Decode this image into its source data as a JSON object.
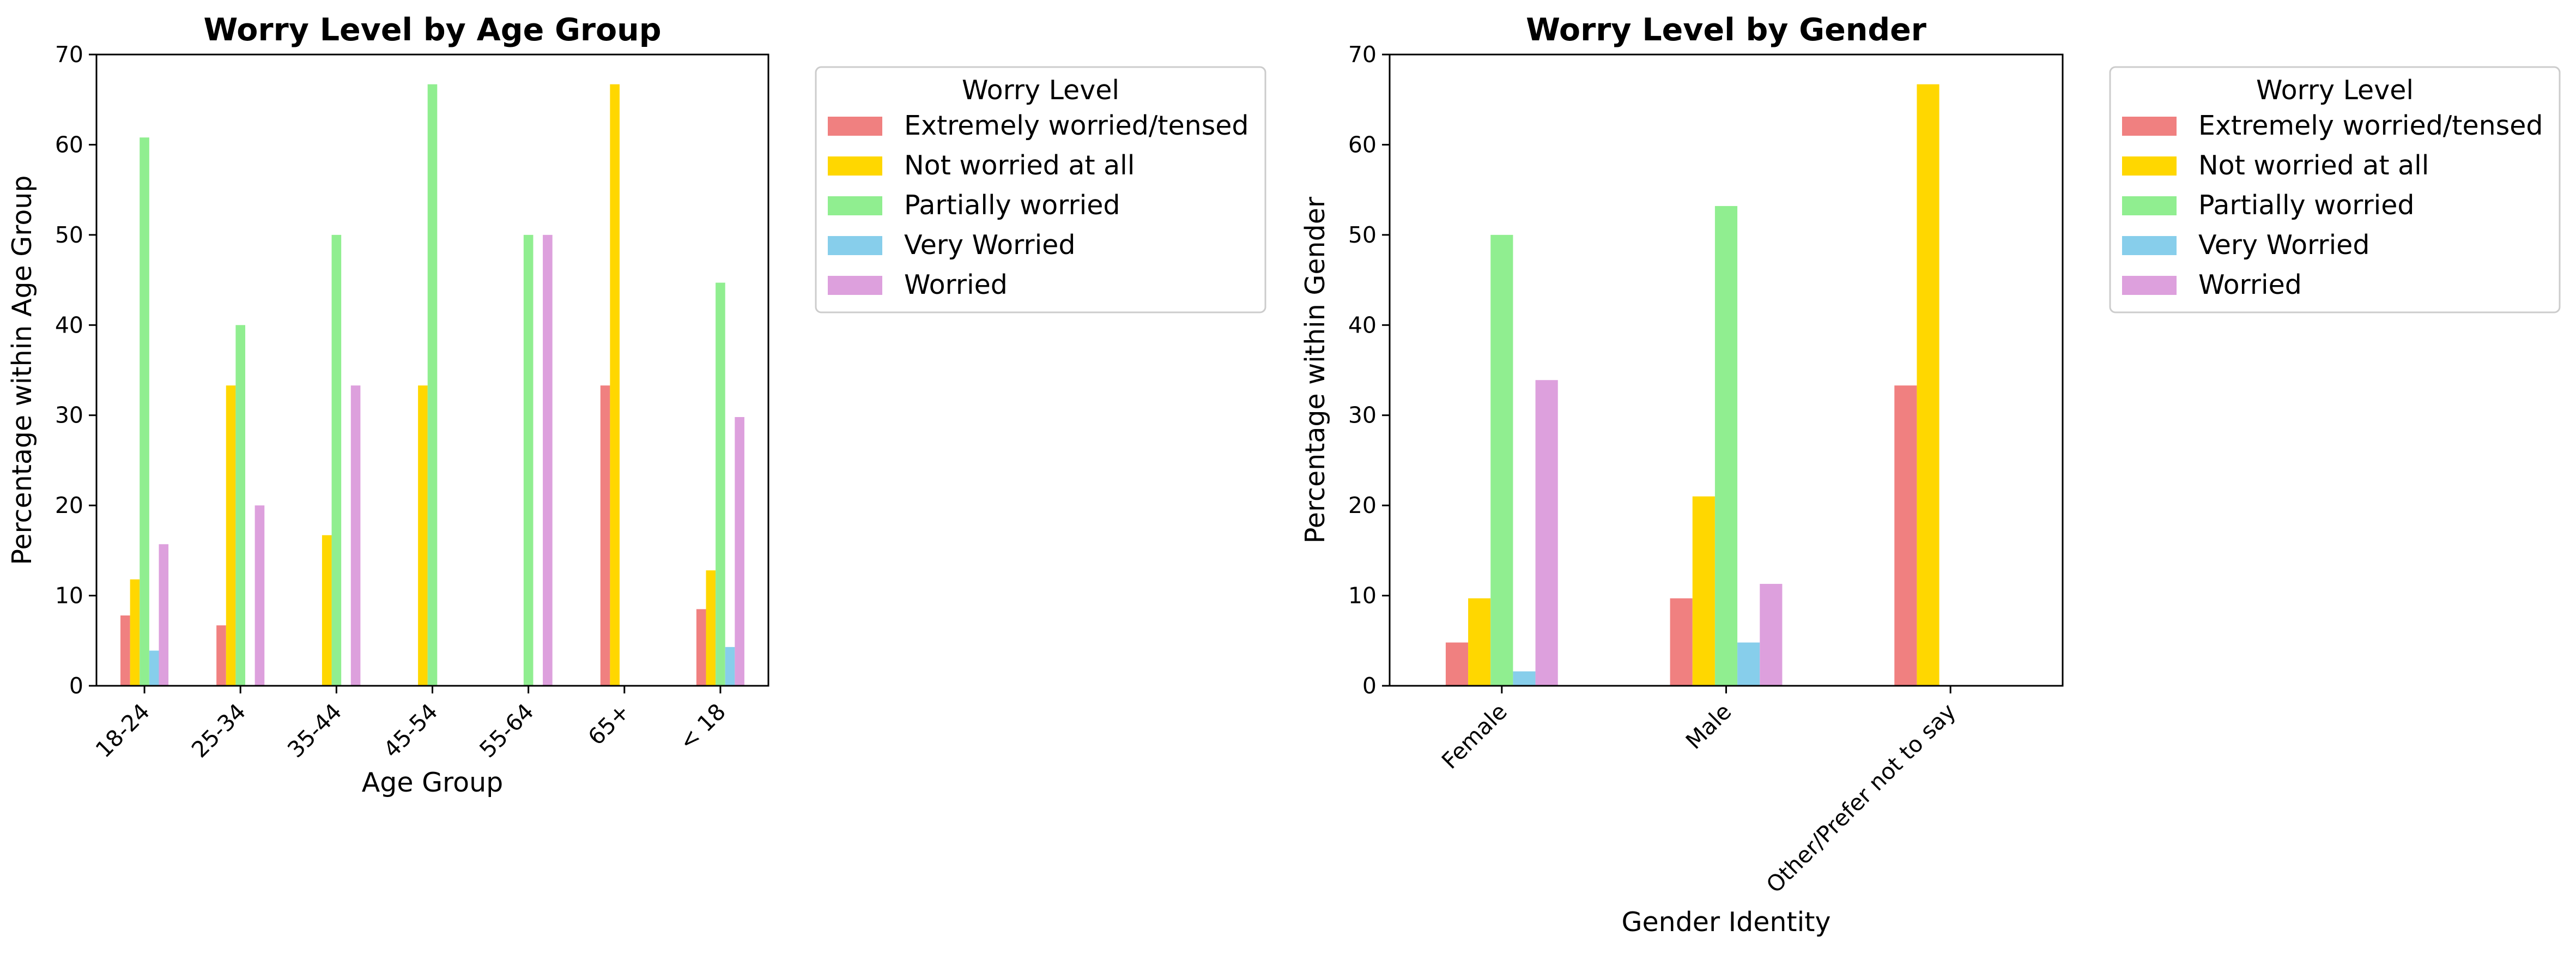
{
  "chart_data": [
    {
      "type": "bar",
      "title": "Worry Level by Age Group",
      "xlabel": "Age Group",
      "ylabel": "Percentage within Age Group",
      "ylim": [
        0,
        70
      ],
      "yticks": [
        0,
        10,
        20,
        30,
        40,
        50,
        60,
        70
      ],
      "grid": false,
      "legend_placement": "outside-right",
      "legend_title": "Worry Level",
      "categories": [
        "18-24",
        "25-34",
        "35-44",
        "45-54",
        "55-64",
        "65+",
        "< 18"
      ],
      "series": [
        {
          "name": "Extremely worried/tensed",
          "color": "#F08080",
          "values": [
            7.8,
            6.7,
            0,
            0,
            0,
            33.3,
            8.5
          ]
        },
        {
          "name": "Not worried at all",
          "color": "#FFD700",
          "values": [
            11.8,
            33.3,
            16.7,
            33.3,
            0,
            66.7,
            12.8
          ]
        },
        {
          "name": "Partially worried",
          "color": "#90EE90",
          "values": [
            60.8,
            40.0,
            50.0,
            66.7,
            50.0,
            0,
            44.7
          ]
        },
        {
          "name": "Very Worried",
          "color": "#87CEEB",
          "values": [
            3.9,
            0,
            0,
            0,
            0,
            0,
            4.3
          ]
        },
        {
          "name": "Worried",
          "color": "#DDA0DD",
          "values": [
            15.7,
            20.0,
            33.3,
            0,
            50.0,
            0,
            29.8
          ]
        }
      ]
    },
    {
      "type": "bar",
      "title": "Worry Level by Gender",
      "xlabel": "Gender Identity",
      "ylabel": "Percentage within Gender",
      "ylim": [
        0,
        70
      ],
      "yticks": [
        0,
        10,
        20,
        30,
        40,
        50,
        60,
        70
      ],
      "grid": false,
      "legend_placement": "outside-right",
      "legend_title": "Worry Level",
      "categories": [
        "Female",
        "Male",
        "Other/Prefer not to say"
      ],
      "series": [
        {
          "name": "Extremely worried/tensed",
          "color": "#F08080",
          "values": [
            4.8,
            9.7,
            33.3
          ]
        },
        {
          "name": "Not worried at all",
          "color": "#FFD700",
          "values": [
            9.7,
            21.0,
            66.7
          ]
        },
        {
          "name": "Partially worried",
          "color": "#90EE90",
          "values": [
            50.0,
            53.2,
            0
          ]
        },
        {
          "name": "Very Worried",
          "color": "#87CEEB",
          "values": [
            1.6,
            4.8,
            0
          ]
        },
        {
          "name": "Worried",
          "color": "#DDA0DD",
          "values": [
            33.9,
            11.3,
            0
          ]
        }
      ]
    }
  ]
}
